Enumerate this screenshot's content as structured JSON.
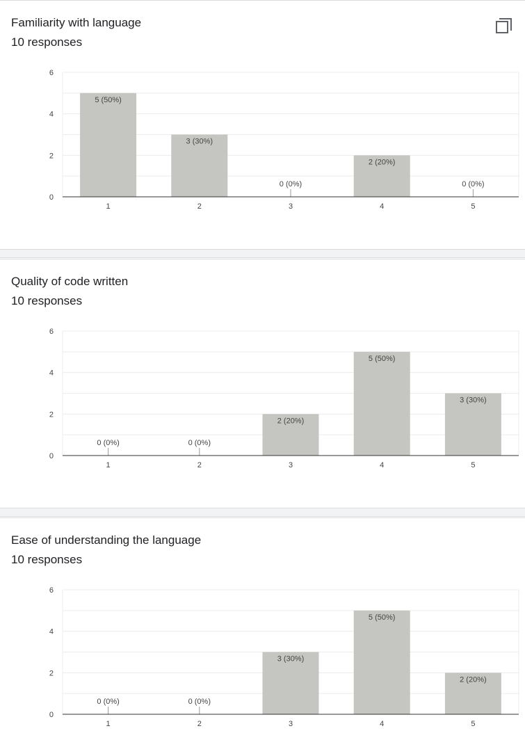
{
  "icons": {
    "copy": "copy-icon"
  },
  "colors": {
    "bar": "#c5c5c1",
    "grid": "#ececec",
    "axis": "#333333",
    "label": "#444444"
  },
  "questions": [
    {
      "title": "Familiarity with language",
      "count": "10 responses"
    },
    {
      "title": "Quality of code written",
      "count": "10 responses"
    },
    {
      "title": "Ease of understanding the language",
      "count": "10 responses"
    }
  ],
  "chart_data": [
    {
      "type": "bar",
      "title": "Familiarity with language",
      "categories": [
        "1",
        "2",
        "3",
        "4",
        "5"
      ],
      "values": [
        5,
        3,
        0,
        2,
        0
      ],
      "labels": [
        "5 (50%)",
        "3 (30%)",
        "0 (0%)",
        "2 (20%)",
        "0 (0%)"
      ],
      "yticks": [
        "0",
        "2",
        "4",
        "6"
      ],
      "ylim": [
        0,
        6
      ],
      "grid": true
    },
    {
      "type": "bar",
      "title": "Quality of code written",
      "categories": [
        "1",
        "2",
        "3",
        "4",
        "5"
      ],
      "values": [
        0,
        0,
        2,
        5,
        3
      ],
      "labels": [
        "0 (0%)",
        "0 (0%)",
        "2 (20%)",
        "5 (50%)",
        "3 (30%)"
      ],
      "yticks": [
        "0",
        "2",
        "4",
        "6"
      ],
      "ylim": [
        0,
        6
      ],
      "grid": true
    },
    {
      "type": "bar",
      "title": "Ease of understanding the language",
      "categories": [
        "1",
        "2",
        "3",
        "4",
        "5"
      ],
      "values": [
        0,
        0,
        3,
        5,
        2
      ],
      "labels": [
        "0 (0%)",
        "0 (0%)",
        "3 (30%)",
        "5 (50%)",
        "2 (20%)"
      ],
      "yticks": [
        "0",
        "2",
        "4",
        "6"
      ],
      "ylim": [
        0,
        6
      ],
      "grid": true
    }
  ]
}
